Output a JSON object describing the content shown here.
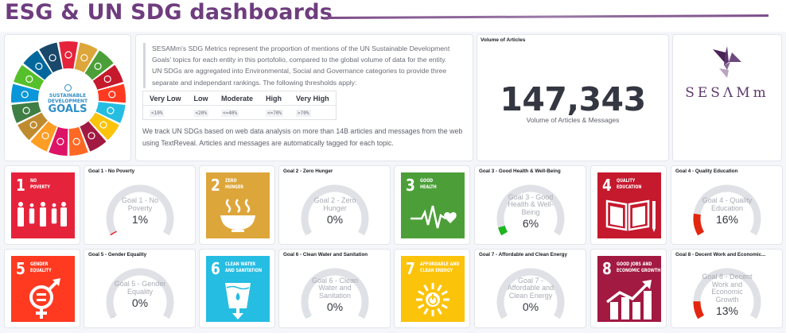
{
  "header": {
    "title": "ESG & UN SDG dashboards",
    "accent_color": "#6e3d7e"
  },
  "intro": {
    "description": "SESAMm's SDG Metrics represent the proportion of mentions of the UN Sustainable Development Goals' topics for each entity in this portofolio, compared to the global volume of data for the entity. UN SDGs are aggregated into Environmental, Social and Governance categories to provide three separate and independant rankings. The following thresholds apply:",
    "thresholds": {
      "headers": [
        "Very Low",
        "Low",
        "Moderate",
        "High",
        "Very High"
      ],
      "values": [
        "<10%",
        "<20%",
        "<=40%",
        "<=70%",
        ">70%"
      ]
    },
    "tracking_text": "We track UN SDGs based on web data analysis on more than 14B articles and messages from the web using TextReveal. Articles and messages are automatically tagged for each topic."
  },
  "sdg_wheel": {
    "line1": "SUSTAINABLE",
    "line2": "DEVELOPMENT",
    "line3": "GOALS",
    "colors": [
      "#e5243b",
      "#dda63a",
      "#4c9f38",
      "#c5192d",
      "#ff3a21",
      "#26bde2",
      "#fcc30b",
      "#a21942",
      "#fd6925",
      "#dd1367",
      "#fd9d24",
      "#bf8b2e",
      "#3f7e44",
      "#0a97d9",
      "#56c02b",
      "#00689d",
      "#19486a"
    ]
  },
  "volume": {
    "panel_title": "Volume of Articles",
    "value": "147,343",
    "label": "Volume of Articles & Messages"
  },
  "logo": {
    "brand": "SESAMm",
    "brand_display": "SESΛMm"
  },
  "goals": [
    {
      "number": "1",
      "name_line1": "NO",
      "name_line2": "POVERTY",
      "color": "#e5243b",
      "panel_title": "Goal 1 - No Poverty",
      "label_lines": [
        "Goal 1 - No",
        "Poverty"
      ],
      "value": "1%",
      "percent": 1,
      "gauge_color": "#e7332f"
    },
    {
      "number": "2",
      "name_line1": "ZERO",
      "name_line2": "HUNGER",
      "color": "#dda63a",
      "panel_title": "Goal 2 - Zero Hunger",
      "label_lines": [
        "Goal 2 - Zero",
        "Hunger"
      ],
      "value": "0%",
      "percent": 0,
      "gauge_color": "#dda63a"
    },
    {
      "number": "3",
      "name_line1": "GOOD",
      "name_line2": "HEALTH",
      "color": "#4c9f38",
      "panel_title": "Goal 3 - Good Health & Well-Being",
      "label_lines": [
        "Goal 3 - Good",
        "Health & Well-",
        "Being"
      ],
      "value": "6%",
      "percent": 6,
      "gauge_color": "#1db51d"
    },
    {
      "number": "4",
      "name_line1": "QUALITY",
      "name_line2": "EDUCATION",
      "color": "#c5192d",
      "panel_title": "Goal 4 - Quality Education",
      "label_lines": [
        "Goal 4 - Quality",
        "Education"
      ],
      "value": "16%",
      "percent": 16,
      "gauge_color": "#e3260f"
    },
    {
      "number": "5",
      "name_line1": "GENDER",
      "name_line2": "EQUALITY",
      "color": "#ff3a21",
      "panel_title": "Goal 5 - Gender Equality",
      "label_lines": [
        "Goal 5 - Gender",
        "Equality"
      ],
      "value": "0%",
      "percent": 0,
      "gauge_color": "#ff3a21"
    },
    {
      "number": "6",
      "name_line1": "CLEAN WATER",
      "name_line2": "AND SANITATION",
      "color": "#26bde2",
      "panel_title": "Goal 6 - Clean Water and Sanitation",
      "label_lines": [
        "Goal 6 - Clean",
        "Water and",
        "Sanitation"
      ],
      "value": "0%",
      "percent": 0,
      "gauge_color": "#26bde2"
    },
    {
      "number": "7",
      "name_line1": "AFFORDABLE AND",
      "name_line2": "CLEAN ENERGY",
      "color": "#fcc30b",
      "panel_title": "Goal 7 - Affordable and Clean Energy",
      "label_lines": [
        "Goal 7 -",
        "Affordable and",
        "Clean Energy"
      ],
      "value": "0%",
      "percent": 0,
      "gauge_color": "#fcc30b"
    },
    {
      "number": "8",
      "name_line1": "GOOD JOBS AND",
      "name_line2": "ECONOMIC GROWTH",
      "color": "#a21942",
      "panel_title": "Goal 8 - Decent Work and Economic...",
      "label_lines": [
        "Goal 8 - Decent",
        "Work and",
        "Economic",
        "Growth"
      ],
      "value": "13%",
      "percent": 13,
      "gauge_color": "#e3260f"
    }
  ]
}
